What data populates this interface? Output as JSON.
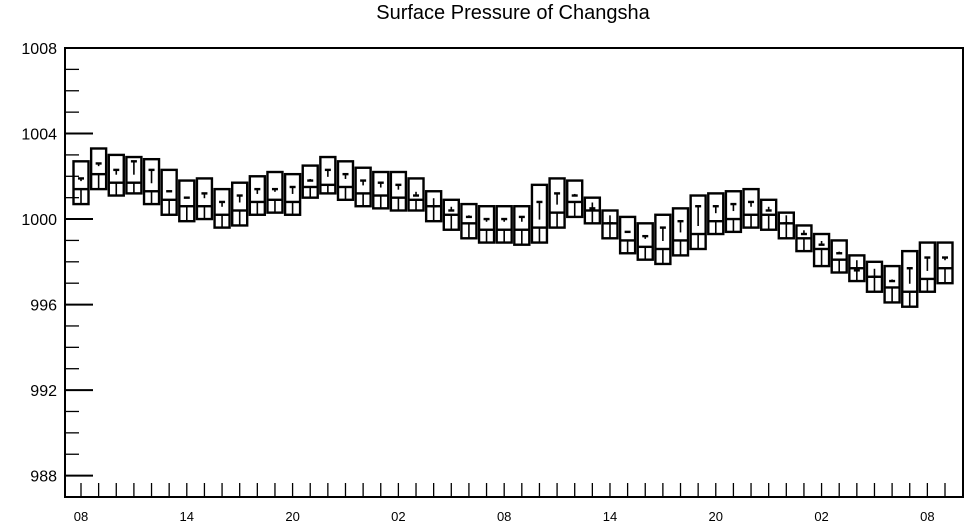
{
  "chart_data": {
    "type": "box",
    "title": "Surface Pressure of Changsha",
    "xlabel": "",
    "ylabel": "",
    "ylim": [
      987,
      1008
    ],
    "y_ticks": [
      988,
      992,
      996,
      1000,
      1004,
      1008
    ],
    "x_tick_labels": [
      "08",
      "14",
      "20",
      "02",
      "08",
      "14",
      "20",
      "02",
      "08"
    ],
    "x_tick_indices": [
      0,
      6,
      12,
      18,
      24,
      30,
      36,
      42,
      48
    ],
    "grid": false,
    "boxes": {
      "q1": [
        1000.7,
        1001.4,
        1001.1,
        1001.2,
        1000.7,
        1000.2,
        999.9,
        1000.0,
        999.6,
        999.7,
        1000.2,
        1000.3,
        1000.2,
        1001.0,
        1001.2,
        1000.9,
        1000.6,
        1000.5,
        1000.4,
        1000.4,
        999.9,
        999.5,
        999.1,
        998.9,
        998.9,
        998.8,
        998.9,
        999.6,
        1000.1,
        999.8,
        999.1,
        998.4,
        998.1,
        997.9,
        998.3,
        998.6,
        999.3,
        999.4,
        999.6,
        999.5,
        999.1,
        998.5,
        997.8,
        997.5,
        997.1,
        996.6,
        996.1,
        995.9,
        996.6,
        997.0
      ],
      "median": [
        1001.4,
        1002.1,
        1001.7,
        1001.7,
        1001.3,
        1000.9,
        1000.6,
        1000.6,
        1000.2,
        1000.4,
        1000.8,
        1000.9,
        1000.8,
        1001.5,
        1001.6,
        1001.5,
        1001.2,
        1001.1,
        1001.0,
        1000.9,
        1000.6,
        1000.2,
        999.8,
        999.5,
        999.5,
        999.5,
        999.6,
        1000.3,
        1000.8,
        1000.4,
        999.8,
        999.0,
        998.7,
        998.6,
        999.0,
        999.3,
        999.9,
        1000.0,
        1000.2,
        1000.2,
        999.8,
        999.1,
        998.6,
        998.1,
        997.7,
        997.3,
        996.8,
        996.6,
        997.2,
        997.7
      ],
      "q3": [
        1002.7,
        1003.3,
        1003.0,
        1002.9,
        1002.8,
        1002.3,
        1001.8,
        1001.9,
        1001.4,
        1001.7,
        1002.0,
        1002.2,
        1002.1,
        1002.5,
        1002.9,
        1002.7,
        1002.4,
        1002.2,
        1002.2,
        1001.9,
        1001.3,
        1000.9,
        1000.7,
        1000.6,
        1000.6,
        1000.6,
        1001.6,
        1001.9,
        1001.8,
        1001.0,
        1000.4,
        1000.1,
        999.8,
        1000.2,
        1000.5,
        1001.1,
        1001.2,
        1001.3,
        1001.4,
        1000.9,
        1000.3,
        999.7,
        999.3,
        999.0,
        998.3,
        998.0,
        997.8,
        998.5,
        998.9,
        998.9
      ],
      "whisker": [
        1001.9,
        1002.6,
        1002.3,
        1002.7,
        1002.3,
        1001.3,
        1001.0,
        1001.2,
        1000.8,
        1001.1,
        1001.4,
        1001.4,
        1001.5,
        1001.8,
        1002.3,
        1002.1,
        1001.8,
        1001.7,
        1001.6,
        1001.1,
        1000.6,
        1000.4,
        1000.1,
        1000.0,
        1000.0,
        1000.1,
        1000.8,
        1001.2,
        1001.1,
        1000.5,
        999.8,
        999.4,
        999.2,
        999.6,
        999.9,
        1000.6,
        1000.6,
        1000.7,
        1000.8,
        1000.4,
        999.8,
        999.3,
        998.8,
        998.4,
        997.6,
        997.3,
        997.1,
        997.7,
        998.2,
        998.2
      ]
    }
  }
}
